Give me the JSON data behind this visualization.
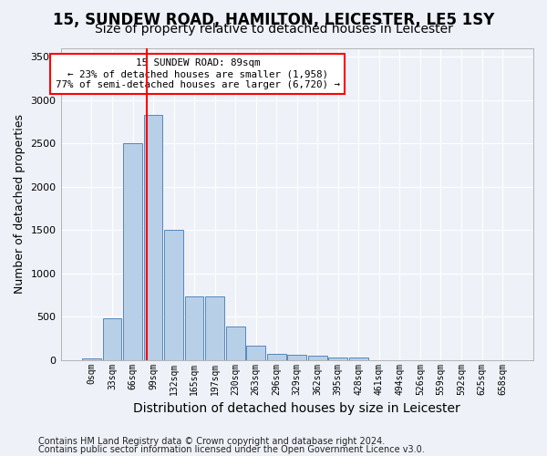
{
  "title1": "15, SUNDEW ROAD, HAMILTON, LEICESTER, LE5 1SY",
  "title2": "Size of property relative to detached houses in Leicester",
  "xlabel": "Distribution of detached houses by size in Leicester",
  "ylabel": "Number of detached properties",
  "footnote1": "Contains HM Land Registry data © Crown copyright and database right 2024.",
  "footnote2": "Contains public sector information licensed under the Open Government Licence v3.0.",
  "bin_labels": [
    "0sqm",
    "33sqm",
    "66sqm",
    "99sqm",
    "132sqm",
    "165sqm",
    "197sqm",
    "230sqm",
    "263sqm",
    "296sqm",
    "329sqm",
    "362sqm",
    "395sqm",
    "428sqm",
    "461sqm",
    "494sqm",
    "526sqm",
    "559sqm",
    "592sqm",
    "625sqm",
    "658sqm"
  ],
  "bar_values": [
    20,
    480,
    2500,
    2830,
    1500,
    730,
    730,
    390,
    160,
    75,
    60,
    45,
    30,
    25,
    0,
    0,
    0,
    0,
    0,
    0,
    0
  ],
  "bar_color": "#b8cfe8",
  "bar_edge_color": "#5588bb",
  "vline_x": 2.7,
  "vline_color": "red",
  "annotation_box_text": "15 SUNDEW ROAD: 89sqm\n← 23% of detached houses are smaller (1,958)\n77% of semi-detached houses are larger (6,720) →",
  "ylim": [
    0,
    3600
  ],
  "yticks": [
    0,
    500,
    1000,
    1500,
    2000,
    2500,
    3000,
    3500
  ],
  "background_color": "#eef2f8",
  "grid_color": "#ffffff",
  "title1_fontsize": 12,
  "title2_fontsize": 10,
  "xlabel_fontsize": 10,
  "ylabel_fontsize": 9,
  "footnote_fontsize": 7.0
}
